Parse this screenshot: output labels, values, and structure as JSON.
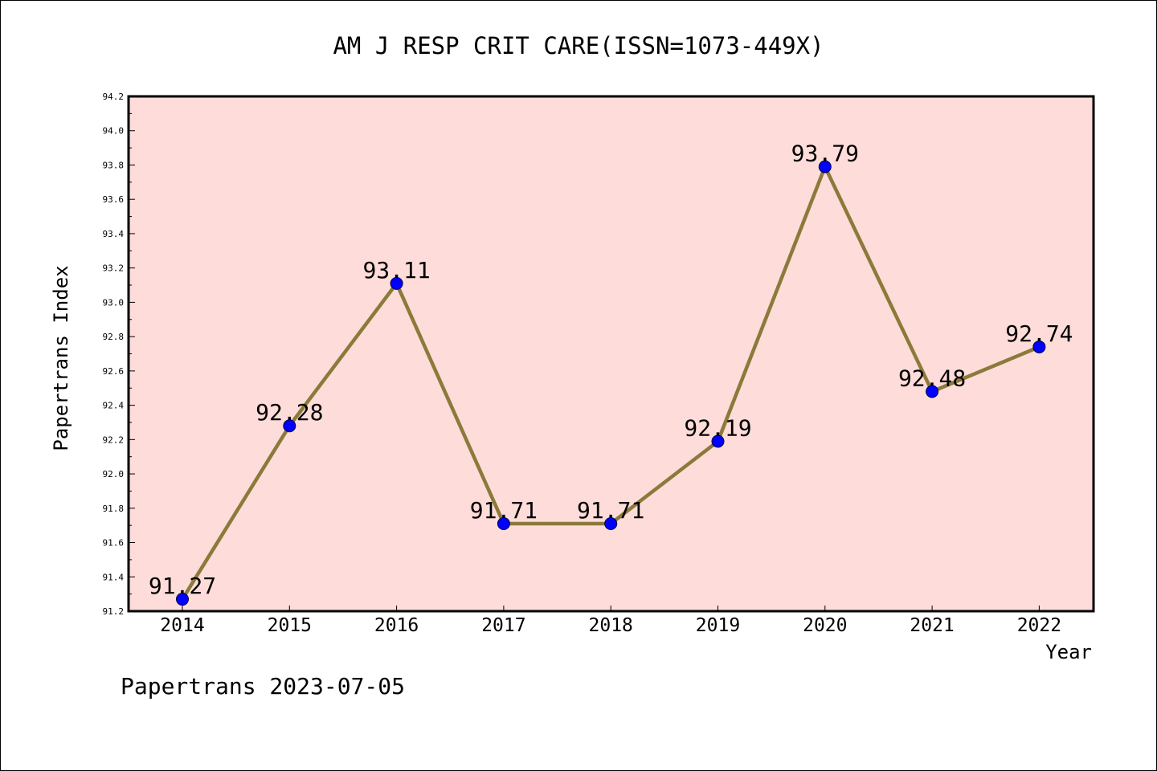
{
  "footer": "Papertrans 2023-07-05",
  "chart_data": {
    "type": "line",
    "title": "AM J RESP CRIT CARE(ISSN=1073-449X)",
    "xlabel": "Year",
    "ylabel": "Papertrans Index",
    "categories": [
      "2014",
      "2015",
      "2016",
      "2017",
      "2018",
      "2019",
      "2020",
      "2021",
      "2022"
    ],
    "series": [
      {
        "values": [
          91.27,
          92.28,
          93.11,
          91.71,
          91.71,
          92.19,
          93.79,
          92.48,
          92.74
        ],
        "labels": [
          "91.27",
          "92.28",
          "93.11",
          "91.71",
          "91.71",
          "92.19",
          "93.79",
          "92.48",
          "92.74"
        ]
      }
    ],
    "ylim": [
      91.2,
      94.2
    ],
    "yticks": [
      "91.2",
      "91.4",
      "91.6",
      "91.8",
      "92.0",
      "92.2",
      "92.4",
      "92.6",
      "92.8",
      "93.0",
      "93.2",
      "93.4",
      "93.6",
      "93.8",
      "94.0",
      "94.2"
    ],
    "grid": false,
    "colors": {
      "plot_background": "#fddcda",
      "line": "#8b7a3a",
      "marker": "#0000ff"
    }
  }
}
